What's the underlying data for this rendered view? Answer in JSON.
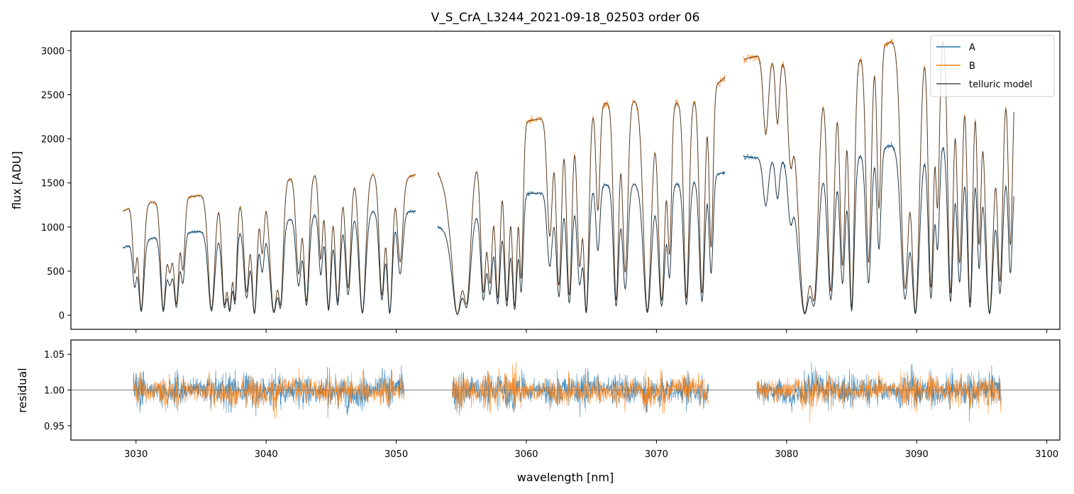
{
  "chart_data": [
    {
      "panel": "top",
      "type": "line",
      "title": "V_S_CrA_L3244_2021-09-18_02503  order 06",
      "xlabel": "",
      "ylabel": "flux [ADU]",
      "xlim": [
        3025,
        3101
      ],
      "ylim": [
        -160,
        3220
      ],
      "yticks": [
        0,
        500,
        1000,
        1500,
        2000,
        2500,
        3000
      ],
      "xticks": [
        3030,
        3040,
        3050,
        3060,
        3070,
        3080,
        3090,
        3100
      ],
      "legend": {
        "position": "top-right",
        "entries": [
          "A",
          "B",
          "telluric model"
        ]
      },
      "segments": [
        [
          3029.0,
          3051.5
        ],
        [
          3053.2,
          3075.3
        ],
        [
          3076.7,
          3097.5
        ]
      ],
      "series": [
        {
          "name": "A",
          "color": "#1f77b4",
          "continuum_x": [
            3029,
            3030,
            3032,
            3034,
            3036,
            3038,
            3040,
            3042,
            3044,
            3046,
            3048,
            3050,
            3051.5,
            3053.2,
            3054,
            3056,
            3058,
            3060,
            3062,
            3064,
            3066,
            3068,
            3070,
            3072,
            3074,
            3075.3,
            3076.7,
            3078,
            3080,
            3082,
            3084,
            3086,
            3088,
            3090,
            3092,
            3094,
            3096,
            3097.5
          ],
          "continuum_y": [
            760,
            830,
            900,
            940,
            960,
            980,
            1000,
            1100,
            1150,
            1160,
            1180,
            1170,
            1180,
            1000,
            960,
            1150,
            1300,
            1380,
            1390,
            1430,
            1480,
            1490,
            1480,
            1490,
            1580,
            1620,
            1800,
            1780,
            1750,
            1650,
            1800,
            1820,
            1920,
            1880,
            1950,
            1850,
            1750,
            1550
          ]
        },
        {
          "name": "B",
          "color": "#ff7f0e",
          "continuum_x": [
            3029,
            3030,
            3032,
            3034,
            3036,
            3038,
            3040,
            3042,
            3044,
            3046,
            3048,
            3050,
            3051.5,
            3053.2,
            3054,
            3056,
            3058,
            3060,
            3062,
            3064,
            3066,
            3068,
            3070,
            3072,
            3074,
            3075.3,
            3076.7,
            3078,
            3080,
            3082,
            3084,
            3086,
            3088,
            3090,
            3092,
            3094,
            3096,
            3097.5
          ],
          "continuum_y": [
            1180,
            1250,
            1300,
            1340,
            1380,
            1300,
            1450,
            1560,
            1600,
            1560,
            1610,
            1500,
            1600,
            1620,
            1350,
            1700,
            2000,
            2200,
            2250,
            2300,
            2400,
            2440,
            2420,
            2400,
            2550,
            2700,
            2900,
            2950,
            2870,
            2600,
            2800,
            2950,
            3100,
            3100,
            3180,
            2850,
            2600,
            2650
          ]
        },
        {
          "name": "telluric model",
          "color": "#000000"
        }
      ],
      "absorption_lines": [
        {
          "x": 3029.9,
          "d": 0.6,
          "w": 0.15
        },
        {
          "x": 3030.4,
          "d": 0.95,
          "w": 0.2
        },
        {
          "x": 3032.1,
          "d": 0.95,
          "w": 0.2
        },
        {
          "x": 3032.6,
          "d": 0.6,
          "w": 0.2
        },
        {
          "x": 3033.1,
          "d": 0.9,
          "w": 0.2
        },
        {
          "x": 3033.6,
          "d": 0.6,
          "w": 0.15
        },
        {
          "x": 3035.8,
          "d": 0.95,
          "w": 0.25
        },
        {
          "x": 3036.8,
          "d": 0.9,
          "w": 0.2
        },
        {
          "x": 3037.2,
          "d": 0.95,
          "w": 0.2
        },
        {
          "x": 3037.6,
          "d": 0.85,
          "w": 0.15
        },
        {
          "x": 3038.5,
          "d": 0.8,
          "w": 0.2
        },
        {
          "x": 3039.1,
          "d": 0.98,
          "w": 0.2
        },
        {
          "x": 3039.7,
          "d": 0.5,
          "w": 0.15
        },
        {
          "x": 3040.6,
          "d": 0.97,
          "w": 0.3
        },
        {
          "x": 3041.1,
          "d": 0.9,
          "w": 0.2
        },
        {
          "x": 3042.5,
          "d": 0.7,
          "w": 0.2
        },
        {
          "x": 3043.1,
          "d": 0.9,
          "w": 0.2
        },
        {
          "x": 3044.2,
          "d": 0.6,
          "w": 0.15
        },
        {
          "x": 3044.8,
          "d": 0.95,
          "w": 0.2
        },
        {
          "x": 3045.5,
          "d": 0.9,
          "w": 0.2
        },
        {
          "x": 3046.3,
          "d": 0.8,
          "w": 0.2
        },
        {
          "x": 3047.4,
          "d": 0.98,
          "w": 0.25
        },
        {
          "x": 3048.9,
          "d": 0.85,
          "w": 0.2
        },
        {
          "x": 3049.5,
          "d": 0.98,
          "w": 0.2
        },
        {
          "x": 3050.3,
          "d": 0.6,
          "w": 0.2
        },
        {
          "x": 3054.7,
          "d": 0.99,
          "w": 0.4
        },
        {
          "x": 3055.4,
          "d": 0.9,
          "w": 0.3
        },
        {
          "x": 3056.7,
          "d": 0.85,
          "w": 0.2
        },
        {
          "x": 3057.2,
          "d": 0.8,
          "w": 0.2
        },
        {
          "x": 3057.8,
          "d": 0.9,
          "w": 0.2
        },
        {
          "x": 3058.5,
          "d": 0.92,
          "w": 0.2
        },
        {
          "x": 3059.1,
          "d": 0.95,
          "w": 0.2
        },
        {
          "x": 3059.6,
          "d": 0.8,
          "w": 0.15
        },
        {
          "x": 3061.8,
          "d": 0.6,
          "w": 0.2
        },
        {
          "x": 3062.5,
          "d": 0.85,
          "w": 0.2
        },
        {
          "x": 3063.3,
          "d": 0.9,
          "w": 0.2
        },
        {
          "x": 3064.1,
          "d": 0.75,
          "w": 0.2
        },
        {
          "x": 3064.6,
          "d": 0.98,
          "w": 0.2
        },
        {
          "x": 3065.5,
          "d": 0.5,
          "w": 0.15
        },
        {
          "x": 3066.9,
          "d": 0.93,
          "w": 0.2
        },
        {
          "x": 3067.6,
          "d": 0.8,
          "w": 0.2
        },
        {
          "x": 3069.3,
          "d": 0.98,
          "w": 0.3
        },
        {
          "x": 3070.4,
          "d": 0.93,
          "w": 0.25
        },
        {
          "x": 3071.0,
          "d": 0.7,
          "w": 0.15
        },
        {
          "x": 3072.3,
          "d": 0.92,
          "w": 0.2
        },
        {
          "x": 3073.5,
          "d": 0.9,
          "w": 0.2
        },
        {
          "x": 3074.2,
          "d": 0.7,
          "w": 0.15
        },
        {
          "x": 3078.4,
          "d": 0.3,
          "w": 0.2
        },
        {
          "x": 3079.3,
          "d": 0.25,
          "w": 0.15
        },
        {
          "x": 3080.3,
          "d": 0.35,
          "w": 0.2
        },
        {
          "x": 3081.4,
          "d": 0.99,
          "w": 0.5
        },
        {
          "x": 3082.1,
          "d": 0.9,
          "w": 0.3
        },
        {
          "x": 3083.4,
          "d": 0.9,
          "w": 0.25
        },
        {
          "x": 3084.3,
          "d": 0.8,
          "w": 0.2
        },
        {
          "x": 3085.0,
          "d": 0.97,
          "w": 0.2
        },
        {
          "x": 3086.3,
          "d": 0.8,
          "w": 0.2
        },
        {
          "x": 3087.1,
          "d": 0.6,
          "w": 0.15
        },
        {
          "x": 3089.1,
          "d": 0.9,
          "w": 0.3
        },
        {
          "x": 3089.9,
          "d": 0.99,
          "w": 0.3
        },
        {
          "x": 3091.1,
          "d": 0.9,
          "w": 0.2
        },
        {
          "x": 3091.6,
          "d": 0.6,
          "w": 0.15
        },
        {
          "x": 3092.6,
          "d": 0.92,
          "w": 0.2
        },
        {
          "x": 3093.3,
          "d": 0.8,
          "w": 0.2
        },
        {
          "x": 3094.1,
          "d": 0.95,
          "w": 0.2
        },
        {
          "x": 3094.8,
          "d": 0.7,
          "w": 0.15
        },
        {
          "x": 3095.6,
          "d": 0.99,
          "w": 0.3
        },
        {
          "x": 3096.4,
          "d": 0.85,
          "w": 0.2
        },
        {
          "x": 3097.2,
          "d": 0.7,
          "w": 0.15
        }
      ]
    },
    {
      "panel": "bottom",
      "type": "line",
      "title": "",
      "xlabel": "wavelength [nm]",
      "ylabel": "residual",
      "xlim": [
        3025,
        3101
      ],
      "ylim": [
        0.93,
        1.07
      ],
      "yticks": [
        0.95,
        1.0,
        1.05
      ],
      "xticks": [
        3030,
        3040,
        3050,
        3060,
        3070,
        3080,
        3090,
        3100
      ],
      "reference_line": 1.0,
      "segments": [
        [
          3029.8,
          3050.6
        ],
        [
          3054.3,
          3074.0
        ],
        [
          3077.7,
          3096.5
        ]
      ],
      "series": [
        {
          "name": "A",
          "color": "#1f77b4",
          "scatter": 0.022
        },
        {
          "name": "B",
          "color": "#ff7f0e",
          "scatter": 0.02
        }
      ]
    }
  ]
}
